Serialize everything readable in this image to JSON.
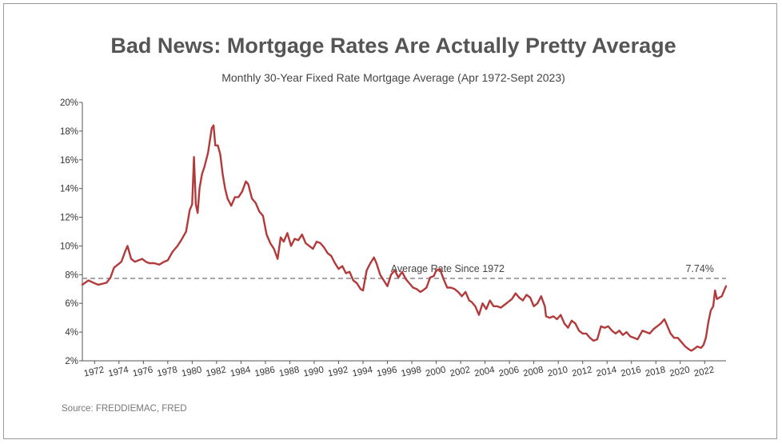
{
  "chart_data": {
    "type": "line",
    "title": "Bad News: Mortgage Rates Are Actually Pretty Average",
    "subtitle": "Monthly 30-Year Fixed Rate Mortgage Average (Apr 1972-Sept 2023)",
    "xlabel": "",
    "ylabel": "",
    "xlim": [
      1971,
      2023.75
    ],
    "ylim": [
      2,
      20
    ],
    "y_ticks": [
      2,
      4,
      6,
      8,
      10,
      12,
      14,
      16,
      18,
      20
    ],
    "y_tick_labels": [
      "2%",
      "4%",
      "6%",
      "8%",
      "10%",
      "12%",
      "14%",
      "16%",
      "18%",
      "20%"
    ],
    "x_ticks": [
      1972,
      1974,
      1976,
      1978,
      1980,
      1982,
      1984,
      1986,
      1988,
      1990,
      1992,
      1994,
      1996,
      1998,
      2000,
      2002,
      2004,
      2006,
      2008,
      2010,
      2012,
      2014,
      2016,
      2018,
      2020,
      2022
    ],
    "x_tick_labels": [
      "1972",
      "1974",
      "1976",
      "1978",
      "1980",
      "1982",
      "1984",
      "1986",
      "1988",
      "1990",
      "1992",
      "1994",
      "1996",
      "1998",
      "2000",
      "2002",
      "2004",
      "2006",
      "2008",
      "2010",
      "2012",
      "2014",
      "2016",
      "2018",
      "2020",
      "2022"
    ],
    "grid": false,
    "series": [
      {
        "name": "30-Year Fixed Rate Mortgage Average",
        "color": "#b33a3a",
        "x": [
          1971.0,
          1971.5,
          1972.0,
          1972.3,
          1972.7,
          1973.0,
          1973.3,
          1973.6,
          1973.9,
          1974.2,
          1974.5,
          1974.7,
          1975.0,
          1975.3,
          1975.6,
          1975.9,
          1976.2,
          1976.5,
          1976.9,
          1977.3,
          1977.7,
          1978.0,
          1978.4,
          1978.8,
          1979.1,
          1979.5,
          1979.8,
          1980.0,
          1980.15,
          1980.3,
          1980.45,
          1980.6,
          1980.8,
          1981.0,
          1981.3,
          1981.6,
          1981.75,
          1981.9,
          1982.1,
          1982.3,
          1982.5,
          1982.7,
          1982.9,
          1983.2,
          1983.5,
          1983.8,
          1984.1,
          1984.4,
          1984.6,
          1984.9,
          1985.2,
          1985.5,
          1985.8,
          1986.1,
          1986.4,
          1986.7,
          1987.0,
          1987.25,
          1987.5,
          1987.8,
          1988.1,
          1988.4,
          1988.7,
          1989.0,
          1989.3,
          1989.6,
          1989.9,
          1990.2,
          1990.5,
          1990.8,
          1991.1,
          1991.4,
          1991.7,
          1992.0,
          1992.3,
          1992.6,
          1992.9,
          1993.2,
          1993.5,
          1993.8,
          1994.0,
          1994.3,
          1994.6,
          1994.9,
          1995.1,
          1995.4,
          1995.7,
          1996.0,
          1996.3,
          1996.6,
          1996.9,
          1997.2,
          1997.5,
          1997.8,
          1998.1,
          1998.4,
          1998.7,
          1998.9,
          1999.2,
          1999.5,
          1999.8,
          2000.0,
          2000.3,
          2000.6,
          2000.9,
          2001.2,
          2001.5,
          2001.8,
          2002.1,
          2002.4,
          2002.7,
          2002.9,
          2003.2,
          2003.5,
          2003.8,
          2004.1,
          2004.4,
          2004.7,
          2005.0,
          2005.3,
          2005.6,
          2005.9,
          2006.2,
          2006.5,
          2006.8,
          2007.1,
          2007.4,
          2007.7,
          2008.0,
          2008.3,
          2008.6,
          2008.9,
          2009.0,
          2009.3,
          2009.6,
          2009.9,
          2010.2,
          2010.5,
          2010.8,
          2011.1,
          2011.4,
          2011.7,
          2012.0,
          2012.3,
          2012.6,
          2012.9,
          2013.2,
          2013.5,
          2013.8,
          2014.1,
          2014.4,
          2014.7,
          2015.0,
          2015.3,
          2015.6,
          2015.9,
          2016.2,
          2016.5,
          2016.9,
          2017.2,
          2017.5,
          2017.8,
          2018.1,
          2018.4,
          2018.7,
          2018.9,
          2019.2,
          2019.5,
          2019.8,
          2020.1,
          2020.4,
          2020.7,
          2020.9,
          2021.1,
          2021.4,
          2021.7,
          2021.9,
          2022.1,
          2022.3,
          2022.5,
          2022.7,
          2022.85,
          2023.0,
          2023.2,
          2023.4,
          2023.6,
          2023.75
        ],
        "y": [
          7.3,
          7.6,
          7.4,
          7.3,
          7.38,
          7.45,
          7.8,
          8.5,
          8.7,
          8.9,
          9.6,
          10.0,
          9.1,
          8.9,
          9.0,
          9.1,
          8.9,
          8.8,
          8.8,
          8.7,
          8.9,
          9.0,
          9.6,
          10.0,
          10.4,
          11.0,
          12.5,
          12.9,
          16.2,
          12.9,
          12.3,
          14.0,
          15.0,
          15.5,
          16.5,
          18.2,
          18.4,
          17.0,
          17.0,
          16.4,
          15.0,
          14.0,
          13.3,
          12.8,
          13.4,
          13.4,
          13.8,
          14.5,
          14.3,
          13.3,
          13.0,
          12.4,
          12.1,
          10.8,
          10.2,
          9.8,
          9.1,
          10.6,
          10.3,
          10.9,
          10.0,
          10.5,
          10.4,
          10.8,
          10.2,
          10.0,
          9.8,
          10.3,
          10.2,
          9.9,
          9.5,
          9.3,
          8.8,
          8.4,
          8.6,
          8.1,
          8.2,
          7.6,
          7.4,
          7.0,
          6.9,
          8.3,
          8.8,
          9.2,
          8.8,
          8.0,
          7.6,
          7.2,
          8.0,
          8.3,
          7.8,
          8.2,
          7.7,
          7.4,
          7.1,
          7.0,
          6.8,
          6.9,
          7.1,
          7.8,
          7.9,
          8.3,
          8.4,
          7.7,
          7.1,
          7.1,
          7.0,
          6.8,
          6.5,
          6.8,
          6.2,
          6.1,
          5.8,
          5.2,
          6.0,
          5.6,
          6.2,
          5.8,
          5.8,
          5.7,
          5.9,
          6.1,
          6.3,
          6.7,
          6.4,
          6.2,
          6.6,
          6.4,
          5.8,
          6.0,
          6.5,
          5.8,
          5.1,
          5.0,
          5.1,
          4.9,
          5.2,
          4.6,
          4.3,
          4.8,
          4.6,
          4.1,
          3.9,
          3.9,
          3.6,
          3.4,
          3.5,
          4.4,
          4.3,
          4.4,
          4.1,
          3.9,
          4.1,
          3.8,
          4.0,
          3.7,
          3.6,
          3.5,
          4.1,
          4.0,
          3.9,
          4.2,
          4.4,
          4.6,
          4.9,
          4.5,
          3.9,
          3.6,
          3.6,
          3.3,
          3.0,
          2.8,
          2.7,
          2.8,
          3.0,
          2.9,
          3.1,
          3.6,
          4.7,
          5.5,
          5.8,
          6.9,
          6.3,
          6.4,
          6.5,
          6.9,
          7.2
        ]
      }
    ],
    "reference_line": {
      "y": 7.74,
      "label": "Average Rate Since 1972",
      "value_label": "7.74%"
    },
    "source": "Source: FREDDIEMAC, FRED"
  }
}
